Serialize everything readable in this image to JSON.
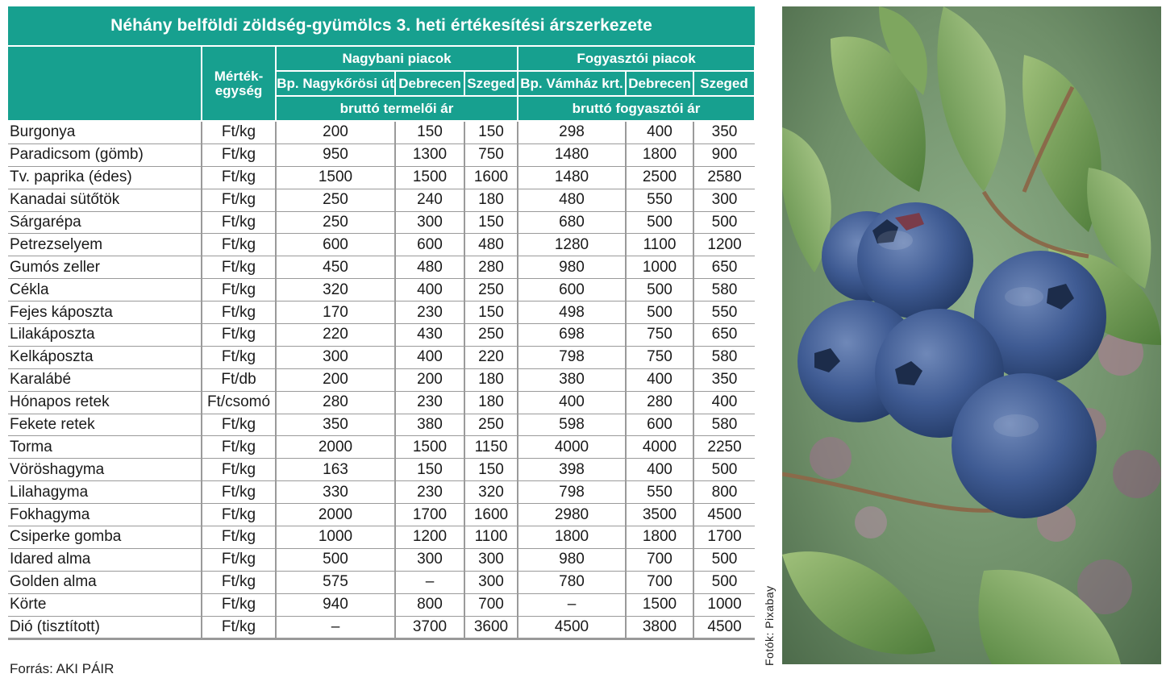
{
  "table": {
    "title": "Néhány belföldi zöldség-gyümölcs 3. heti értékesítési árszerkezete",
    "unit_header_line1": "Mérték-",
    "unit_header_line2": "egység",
    "groups": {
      "wholesale": "Nagybani piacok",
      "consumer": "Fogyasztói piacok"
    },
    "markets": [
      "Bp. Nagykőrösi út",
      "Debrecen",
      "Szeged",
      "Bp. Vámház krt.",
      "Debrecen",
      "Szeged"
    ],
    "price_types": {
      "wholesale": "bruttó termelői ár",
      "consumer": "bruttó fogyasztói ár"
    },
    "rows": [
      {
        "name": "Burgonya",
        "unit": "Ft/kg",
        "values": [
          "200",
          "150",
          "150",
          "298",
          "400",
          "350"
        ]
      },
      {
        "name": "Paradicsom (gömb)",
        "unit": "Ft/kg",
        "values": [
          "950",
          "1300",
          "750",
          "1480",
          "1800",
          "900"
        ]
      },
      {
        "name": "Tv. paprika (édes)",
        "unit": "Ft/kg",
        "values": [
          "1500",
          "1500",
          "1600",
          "1480",
          "2500",
          "2580"
        ]
      },
      {
        "name": "Kanadai sütőtök",
        "unit": "Ft/kg",
        "values": [
          "250",
          "240",
          "180",
          "480",
          "550",
          "300"
        ]
      },
      {
        "name": "Sárgarépa",
        "unit": "Ft/kg",
        "values": [
          "250",
          "300",
          "150",
          "680",
          "500",
          "500"
        ]
      },
      {
        "name": "Petrezselyem",
        "unit": "Ft/kg",
        "values": [
          "600",
          "600",
          "480",
          "1280",
          "1100",
          "1200"
        ]
      },
      {
        "name": "Gumós zeller",
        "unit": "Ft/kg",
        "values": [
          "450",
          "480",
          "280",
          "980",
          "1000",
          "650"
        ]
      },
      {
        "name": "Cékla",
        "unit": "Ft/kg",
        "values": [
          "320",
          "400",
          "250",
          "600",
          "500",
          "580"
        ]
      },
      {
        "name": "Fejes káposzta",
        "unit": "Ft/kg",
        "values": [
          "170",
          "230",
          "150",
          "498",
          "500",
          "550"
        ]
      },
      {
        "name": "Lilakáposzta",
        "unit": "Ft/kg",
        "values": [
          "220",
          "430",
          "250",
          "698",
          "750",
          "650"
        ]
      },
      {
        "name": "Kelkáposzta",
        "unit": "Ft/kg",
        "values": [
          "300",
          "400",
          "220",
          "798",
          "750",
          "580"
        ]
      },
      {
        "name": "Karalábé",
        "unit": "Ft/db",
        "values": [
          "200",
          "200",
          "180",
          "380",
          "400",
          "350"
        ]
      },
      {
        "name": "Hónapos retek",
        "unit": "Ft/csomó",
        "values": [
          "280",
          "230",
          "180",
          "400",
          "280",
          "400"
        ]
      },
      {
        "name": "Fekete retek",
        "unit": "Ft/kg",
        "values": [
          "350",
          "380",
          "250",
          "598",
          "600",
          "580"
        ]
      },
      {
        "name": "Torma",
        "unit": "Ft/kg",
        "values": [
          "2000",
          "1500",
          "1150",
          "4000",
          "4000",
          "2250"
        ]
      },
      {
        "name": "Vöröshagyma",
        "unit": "Ft/kg",
        "values": [
          "163",
          "150",
          "150",
          "398",
          "400",
          "500"
        ]
      },
      {
        "name": "Lilahagyma",
        "unit": "Ft/kg",
        "values": [
          "330",
          "230",
          "320",
          "798",
          "550",
          "800"
        ]
      },
      {
        "name": "Fokhagyma",
        "unit": "Ft/kg",
        "values": [
          "2000",
          "1700",
          "1600",
          "2980",
          "3500",
          "4500"
        ]
      },
      {
        "name": "Csiperke gomba",
        "unit": "Ft/kg",
        "values": [
          "1000",
          "1200",
          "1100",
          "1800",
          "1800",
          "1700"
        ]
      },
      {
        "name": "Idared alma",
        "unit": "Ft/kg",
        "values": [
          "500",
          "300",
          "300",
          "980",
          "700",
          "500"
        ]
      },
      {
        "name": "Golden alma",
        "unit": "Ft/kg",
        "values": [
          "575",
          "–",
          "300",
          "780",
          "700",
          "500"
        ]
      },
      {
        "name": "Körte",
        "unit": "Ft/kg",
        "values": [
          "940",
          "800",
          "700",
          "–",
          "1500",
          "1000"
        ]
      },
      {
        "name": "Dió (tisztított)",
        "unit": "Ft/kg",
        "values": [
          "–",
          "3700",
          "3600",
          "4500",
          "3800",
          "4500"
        ]
      }
    ]
  },
  "source_note": "Forrás: AKI PÁIR",
  "photo": {
    "subject": "blueberries-photo",
    "credit": "Fotók: Pixabay"
  },
  "colors": {
    "header_teal": "#17a08f",
    "grid_gray": "#9a9a9a"
  }
}
